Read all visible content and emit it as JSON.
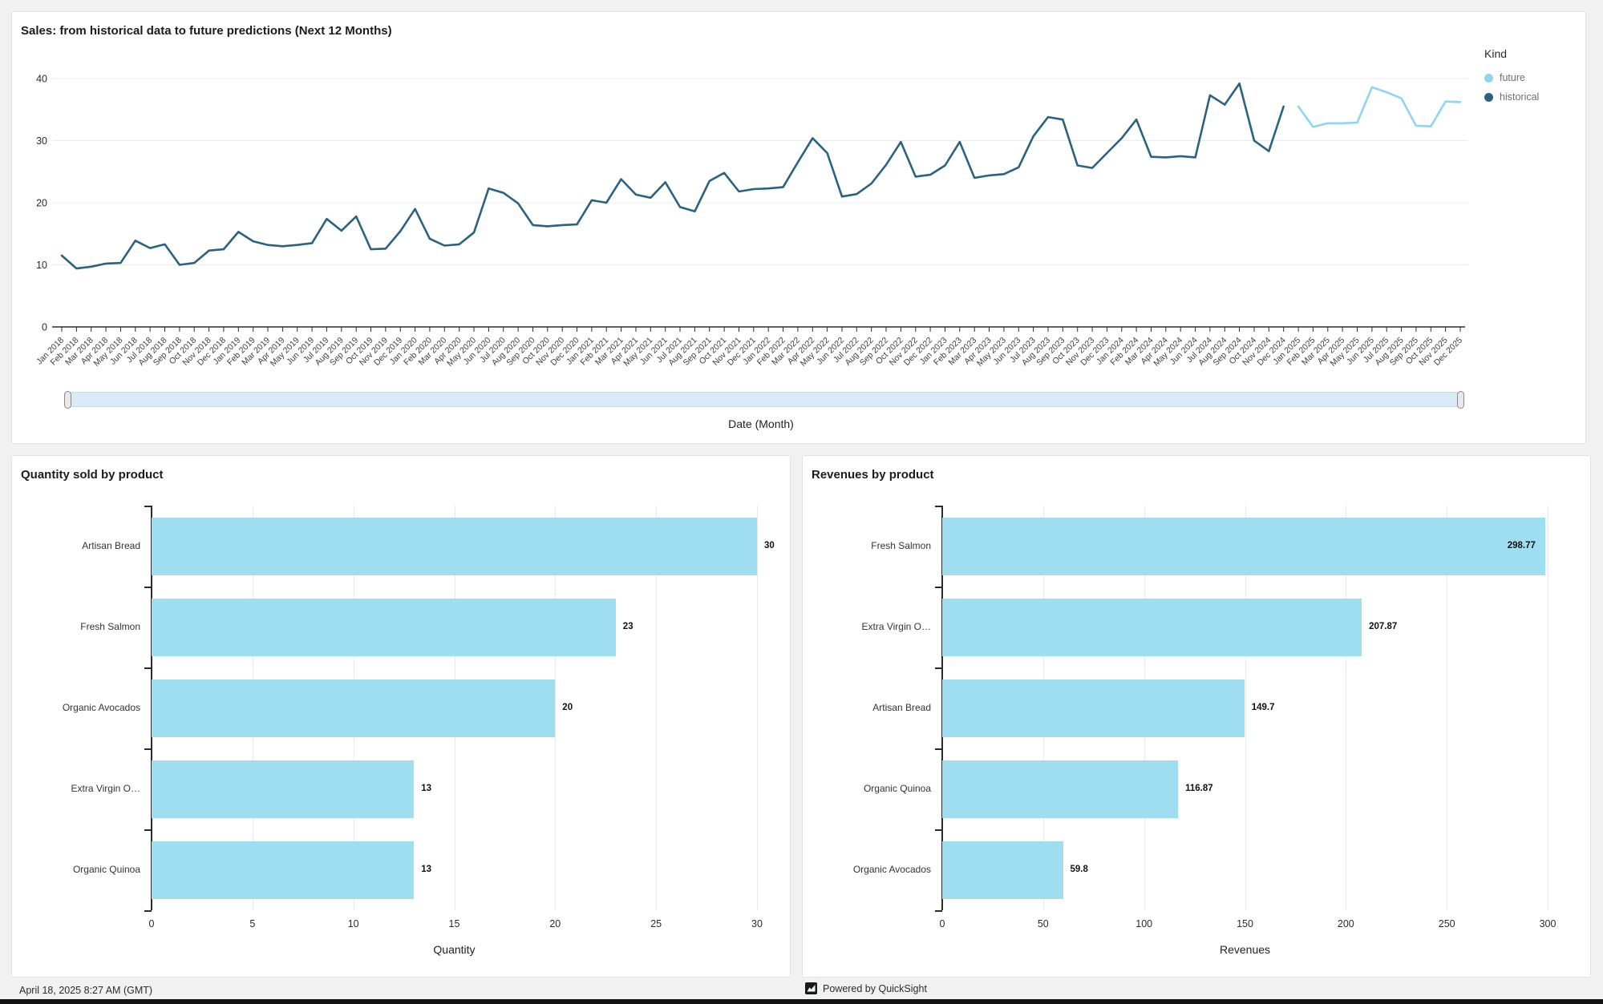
{
  "page": {
    "footer": {
      "timestamp": "April 18, 2025 8:27 AM (GMT)",
      "powered_by": "Powered by QuickSight"
    },
    "slider_fill": "#d8ebf7"
  },
  "chart_data": [
    {
      "type": "line",
      "title": "Sales: from historical data to future predictions (Next 12 Months)",
      "xlabel": "Date (Month)",
      "ylabel": "",
      "ylim": [
        0,
        40
      ],
      "y_ticks": [
        0,
        10,
        20,
        30,
        40
      ],
      "grid": true,
      "legend_title": "Kind",
      "legend_position": "right",
      "x": [
        "Jan 2018",
        "Feb 2018",
        "Mar 2018",
        "Apr 2018",
        "May 2018",
        "Jun 2018",
        "Jul 2018",
        "Aug 2018",
        "Sep 2018",
        "Oct 2018",
        "Nov 2018",
        "Dec 2018",
        "Jan 2019",
        "Feb 2019",
        "Mar 2019",
        "Apr 2019",
        "May 2019",
        "Jun 2019",
        "Jul 2019",
        "Aug 2019",
        "Sep 2019",
        "Oct 2019",
        "Nov 2019",
        "Dec 2019",
        "Jan 2020",
        "Feb 2020",
        "Mar 2020",
        "Apr 2020",
        "May 2020",
        "Jun 2020",
        "Jul 2020",
        "Aug 2020",
        "Sep 2020",
        "Oct 2020",
        "Nov 2020",
        "Dec 2020",
        "Jan 2021",
        "Feb 2021",
        "Mar 2021",
        "Apr 2021",
        "May 2021",
        "Jun 2021",
        "Jul 2021",
        "Aug 2021",
        "Sep 2021",
        "Oct 2021",
        "Nov 2021",
        "Dec 2021",
        "Jan 2022",
        "Feb 2022",
        "Mar 2022",
        "Apr 2022",
        "May 2022",
        "Jun 2022",
        "Jul 2022",
        "Aug 2022",
        "Sep 2022",
        "Oct 2022",
        "Nov 2022",
        "Dec 2022",
        "Jan 2023",
        "Feb 2023",
        "Mar 2023",
        "Apr 2023",
        "May 2023",
        "Jun 2023",
        "Jul 2023",
        "Aug 2023",
        "Sep 2023",
        "Oct 2023",
        "Nov 2023",
        "Dec 2023",
        "Jan 2024",
        "Feb 2024",
        "Mar 2024",
        "Apr 2024",
        "May 2024",
        "Jun 2024",
        "Jul 2024",
        "Aug 2024",
        "Sep 2024",
        "Oct 2024",
        "Nov 2024",
        "Dec 2024",
        "Jan 2025",
        "Feb 2025",
        "Mar 2025",
        "Apr 2025",
        "May 2025",
        "Jun 2025",
        "Jul 2025",
        "Aug 2025",
        "Sep 2025",
        "Oct 2025",
        "Nov 2025",
        "Dec 2025"
      ],
      "series": [
        {
          "name": "historical",
          "color": "#2a627f",
          "start_index": 0,
          "values": [
            11.5,
            9.4,
            9.7,
            10.2,
            10.3,
            13.9,
            12.7,
            13.3,
            10,
            10.3,
            12.3,
            12.5,
            15.3,
            13.8,
            13.2,
            13,
            13.2,
            13.5,
            17.4,
            15.5,
            17.8,
            12.5,
            12.6,
            15.4,
            19,
            14.2,
            13.1,
            13.3,
            15.2,
            22.3,
            21.6,
            19.9,
            16.4,
            16.2,
            16.4,
            16.5,
            20.4,
            20,
            23.8,
            21.3,
            20.8,
            23.3,
            19.3,
            18.6,
            23.5,
            24.8,
            21.8,
            22.2,
            22.3,
            22.5,
            26.5,
            30.4,
            28,
            21,
            21.4,
            23.1,
            26.1,
            29.8,
            24.2,
            24.5,
            26,
            29.8,
            24,
            24.4,
            24.6,
            25.7,
            30.7,
            33.8,
            33.4,
            26,
            25.6,
            28,
            30.4,
            33.4,
            27.4,
            27.3,
            27.5,
            27.3,
            37.3,
            35.8,
            39.2,
            30,
            28.3,
            35.5
          ]
        },
        {
          "name": "future",
          "color": "#90d5f0",
          "start_index": 84,
          "values": [
            35.5,
            32.2,
            32.8,
            32.8,
            32.9,
            38.6,
            37.8,
            36.8,
            32.4,
            32.3,
            36.3,
            36.2
          ]
        }
      ]
    },
    {
      "type": "bar",
      "orientation": "horizontal",
      "title": "Quantity sold by product",
      "xlabel": "Quantity",
      "categories": [
        "Artisan Bread",
        "Fresh Salmon",
        "Organic Avocados",
        "Extra Virgin O…",
        "Organic Quinoa"
      ],
      "values": [
        30,
        23,
        20,
        13,
        13
      ],
      "x_ticks": [
        0,
        5,
        10,
        15,
        20,
        25,
        30
      ],
      "xlim": [
        0,
        30
      ],
      "grid": true,
      "bar_color": "#9fdef0"
    },
    {
      "type": "bar",
      "orientation": "horizontal",
      "title": "Revenues by product",
      "xlabel": "Revenues",
      "categories": [
        "Fresh Salmon",
        "Extra Virgin O…",
        "Artisan Bread",
        "Organic Quinoa",
        "Organic Avocados"
      ],
      "values": [
        298.77,
        207.87,
        149.7,
        116.87,
        59.8
      ],
      "x_ticks": [
        0,
        50,
        100,
        150,
        200,
        250,
        300
      ],
      "xlim": [
        0,
        300
      ],
      "grid": true,
      "bar_color": "#9fdef0"
    }
  ]
}
